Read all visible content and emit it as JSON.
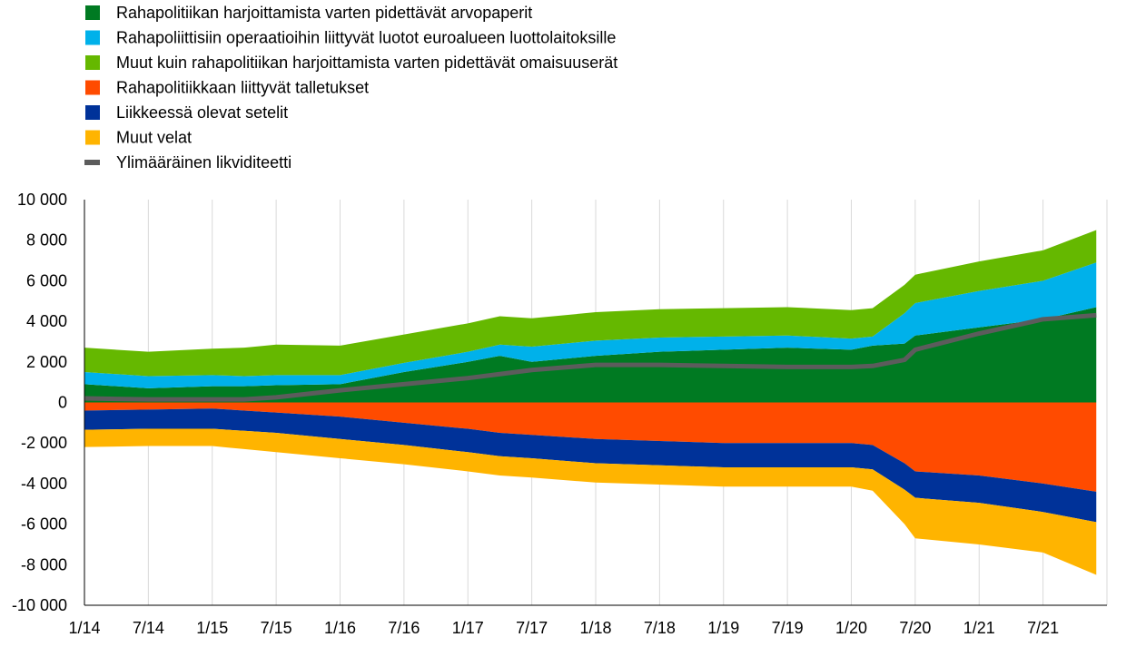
{
  "chart_data": {
    "type": "area",
    "title": "",
    "xlabel": "",
    "ylabel": "",
    "ylim": [
      -10000,
      10000
    ],
    "y_ticks": [
      10000,
      8000,
      6000,
      4000,
      2000,
      0,
      -2000,
      -4000,
      -6000,
      -8000,
      -10000
    ],
    "y_tick_labels": [
      "10 000",
      "8 000",
      "6 000",
      "4 000",
      "2 000",
      "0",
      "-2 000",
      "-4 000",
      "-6 000",
      "-8 000",
      "-10 000"
    ],
    "x_tick_labels": [
      "1/14",
      "7/14",
      "1/15",
      "7/15",
      "1/16",
      "7/16",
      "1/17",
      "7/17",
      "1/18",
      "7/18",
      "1/19",
      "7/19",
      "1/20",
      "7/20",
      "1/21",
      "7/21"
    ],
    "x_range": [
      "2014-01",
      "2021-12"
    ],
    "grid": "vertical",
    "legend_position": "top-left",
    "x": [
      "2014-01",
      "2014-07",
      "2015-01",
      "2015-04",
      "2015-07",
      "2016-01",
      "2016-07",
      "2017-01",
      "2017-04",
      "2017-07",
      "2018-01",
      "2018-07",
      "2019-01",
      "2019-07",
      "2020-01",
      "2020-03",
      "2020-06",
      "2020-07",
      "2021-01",
      "2021-07",
      "2021-12"
    ],
    "series": [
      {
        "name": "Rahapolitiikan harjoittamista varten pidettävät arvopaperit",
        "side": "positive",
        "color": "#007a22",
        "values": [
          900,
          700,
          800,
          800,
          850,
          900,
          1500,
          2000,
          2300,
          2000,
          2300,
          2500,
          2600,
          2700,
          2600,
          2800,
          2900,
          3300,
          3700,
          4100,
          4700
        ]
      },
      {
        "name": "Rahapoliittisiin operaatioihin liittyvät luotot euroalueen luottolaitoksille",
        "side": "positive",
        "color": "#00b1ea",
        "values": [
          600,
          600,
          550,
          500,
          500,
          450,
          450,
          500,
          550,
          750,
          750,
          700,
          650,
          600,
          550,
          450,
          1500,
          1600,
          1800,
          1900,
          2200
        ]
      },
      {
        "name": "Muut kuin rahapolitiikan harjoittamista varten pidettävät omaisuuserät",
        "side": "positive",
        "color": "#65b800",
        "values": [
          1200,
          1200,
          1300,
          1400,
          1500,
          1450,
          1400,
          1400,
          1400,
          1400,
          1400,
          1400,
          1400,
          1400,
          1400,
          1400,
          1400,
          1400,
          1450,
          1500,
          1600
        ]
      },
      {
        "name": "Rahapolitiikkaan liittyvät talletukset",
        "side": "negative",
        "color": "#ff4b00",
        "values": [
          -400,
          -350,
          -300,
          -400,
          -500,
          -700,
          -1000,
          -1300,
          -1500,
          -1600,
          -1800,
          -1900,
          -2000,
          -2000,
          -2000,
          -2100,
          -3000,
          -3400,
          -3600,
          -4000,
          -4400
        ]
      },
      {
        "name": "Liikkeessä olevat setelit",
        "side": "negative",
        "color": "#003299",
        "values": [
          -950,
          -950,
          -1000,
          -1000,
          -1000,
          -1100,
          -1100,
          -1150,
          -1150,
          -1150,
          -1200,
          -1200,
          -1200,
          -1200,
          -1200,
          -1200,
          -1300,
          -1300,
          -1350,
          -1400,
          -1500
        ]
      },
      {
        "name": "Muut velat",
        "side": "negative",
        "color": "#ffb400",
        "values": [
          -850,
          -850,
          -850,
          -900,
          -950,
          -950,
          -950,
          -950,
          -950,
          -950,
          -950,
          -950,
          -950,
          -950,
          -950,
          -1050,
          -1700,
          -2000,
          -2050,
          -2000,
          -2600
        ]
      },
      {
        "name": "Ylimääräinen likviditeetti",
        "side": "line",
        "color": "#5c5c5c",
        "values": [
          200,
          150,
          150,
          150,
          250,
          600,
          900,
          1200,
          1400,
          1600,
          1850,
          1850,
          1800,
          1750,
          1750,
          1800,
          2100,
          2600,
          3400,
          4100,
          4300
        ]
      }
    ]
  }
}
